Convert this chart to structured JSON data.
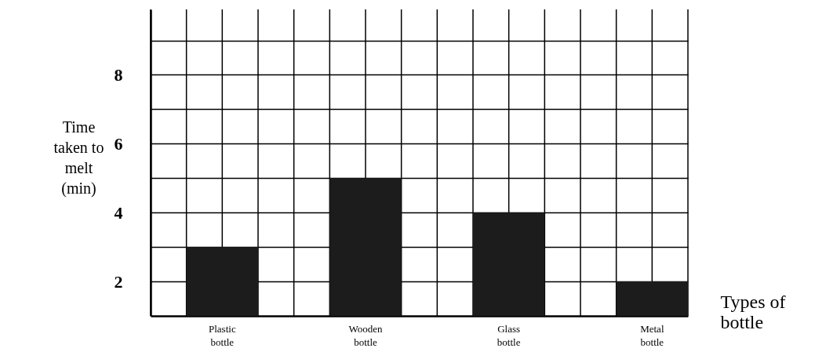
{
  "chart_data": {
    "type": "bar",
    "categories": [
      "Plastic bottle",
      "Wooden bottle",
      "Glass bottle",
      "Metal bottle"
    ],
    "values": [
      3,
      5,
      4,
      2
    ],
    "color": "#1c1c1c",
    "ylabel": "Time taken to melt (min)",
    "xlabel": "Types of bottle",
    "ylim": [
      1,
      9.9
    ],
    "yticks": [
      2,
      {
        "value": 3,
        "label": null
      },
      4,
      {
        "value": 5,
        "label": null
      },
      6,
      {
        "value": 7,
        "label": null
      },
      8,
      {
        "value": 9,
        "label": null
      }
    ],
    "grid": true
  }
}
